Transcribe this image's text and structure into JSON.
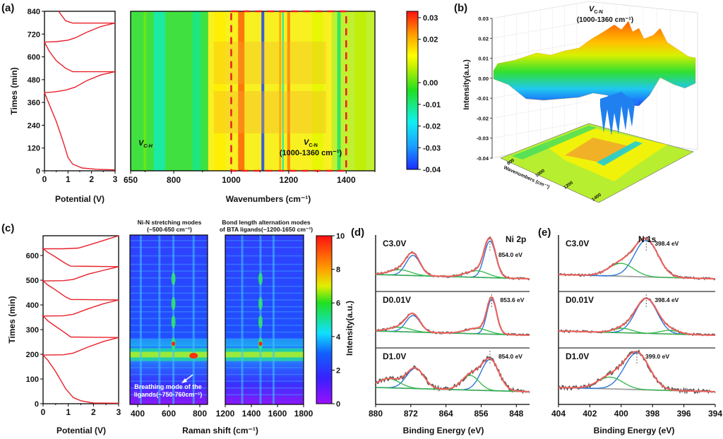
{
  "chart_data": [
    {
      "panel": "(a)",
      "type": "line",
      "subplot": "a-left",
      "xlabel": "Potential (V)",
      "ylabel": "Times (min)",
      "xlim": [
        0,
        3
      ],
      "ylim": [
        0,
        840
      ],
      "xticks": [
        "0",
        "1",
        "2",
        "3"
      ],
      "yticks": [
        "0",
        "120",
        "240",
        "360",
        "480",
        "600",
        "720",
        "840"
      ],
      "series": [
        {
          "name": "charge-discharge",
          "color": "#e8202a",
          "x": [
            3.0,
            2.2,
            1.6,
            1.2,
            1.0,
            0.8,
            0.5,
            0.2,
            0.0,
            0.0,
            0.4,
            0.9,
            1.3,
            1.8,
            2.4,
            3.0,
            3.0,
            1.2,
            0.9,
            0.5,
            0.2,
            0.0,
            0.0,
            0.5,
            1.0,
            1.3,
            1.8,
            2.4,
            3.0,
            3.0,
            1.2,
            0.9,
            0.6
          ],
          "y": [
            5,
            8,
            15,
            35,
            70,
            150,
            260,
            350,
            412,
            412,
            415,
            425,
            440,
            475,
            505,
            522,
            522,
            522,
            540,
            580,
            630,
            678,
            678,
            680,
            688,
            700,
            730,
            760,
            778,
            778,
            778,
            790,
            840
          ]
        }
      ]
    },
    {
      "panel": "(a)",
      "type": "heatmap",
      "subplot": "a-right",
      "xlabel": "Wavenumbers (cm⁻¹)",
      "xlim": [
        650,
        1500
      ],
      "ylim": [
        0,
        840
      ],
      "xticks": [
        "650",
        "800",
        "1000",
        "1200",
        "1400"
      ],
      "colorbar": {
        "ticks": [
          "0.03",
          "0.02",
          "0.00",
          "-0.01",
          "-0.02",
          "-0.03",
          "-0.04"
        ],
        "range": [
          -0.04,
          0.03
        ]
      },
      "annotations": [
        "ν C-H",
        "ν C-N",
        "(1000-1360 cm⁻¹)"
      ],
      "highlight_box": {
        "x": [
          1000,
          1400
        ]
      },
      "bands": [
        {
          "wavenumber": 700,
          "value": 0.0
        },
        {
          "wavenumber": 750,
          "value": -0.015
        },
        {
          "wavenumber": 880,
          "value": -0.012
        },
        {
          "wavenumber": 960,
          "value": 0.012
        },
        {
          "wavenumber": 1035,
          "value": 0.024
        },
        {
          "wavenumber": 1110,
          "value": -0.038
        },
        {
          "wavenumber": 1170,
          "value": 0.02
        },
        {
          "wavenumber": 1180,
          "value": -0.015
        },
        {
          "wavenumber": 1200,
          "value": 0.022
        },
        {
          "wavenumber": 1300,
          "value": 0.008
        },
        {
          "wavenumber": 1375,
          "value": -0.01
        },
        {
          "wavenumber": 1450,
          "value": 0.005
        }
      ]
    },
    {
      "panel": "(b)",
      "type": "area",
      "subplot": "b-3d-surface",
      "ylabel": "Intensity(a.u.)",
      "zlim": [
        -0.04,
        0.03
      ],
      "zticks": [
        "0.03",
        "0.02",
        "0.01",
        "0.00",
        "-0.01",
        "-0.02",
        "-0.03",
        "-0.04"
      ],
      "xaxis_ticks": [
        "800",
        "1000",
        "1200",
        "1400"
      ],
      "xlabel": "Wavenumbers (cm⁻¹)",
      "annotations": [
        "ν C-N",
        "(1000-1360 cm⁻¹)"
      ]
    },
    {
      "panel": "(c)",
      "type": "line",
      "subplot": "c-left",
      "xlabel": "Potential (V)",
      "ylabel": "Times (min)",
      "xlim": [
        0,
        3
      ],
      "ylim": [
        0,
        680
      ],
      "xticks": [
        "0",
        "1",
        "2",
        "3"
      ],
      "yticks": [
        "0",
        "100",
        "200",
        "300",
        "400",
        "500",
        "600"
      ],
      "series": [
        {
          "name": "charge-discharge",
          "color": "#e8202a",
          "x": [
            3.0,
            2.0,
            1.5,
            1.2,
            0.9,
            0.5,
            0.2,
            0.0,
            0.0,
            0.8,
            1.2,
            1.8,
            2.4,
            3.0,
            3.0,
            1.1,
            0.9,
            0.4,
            0.2,
            0.0,
            0.0,
            0.8,
            1.2,
            1.8,
            2.4,
            3.0,
            3.0,
            1.1,
            0.9,
            0.4,
            0.2,
            0.0,
            0.0,
            0.8,
            1.2,
            1.8,
            2.4,
            3.0,
            3.0,
            1.1,
            0.9,
            0.4,
            0.2,
            0.0,
            0.0,
            0.8,
            1.4,
            2.0,
            2.5,
            3.0
          ],
          "y": [
            2,
            3,
            12,
            25,
            60,
            130,
            175,
            197,
            197,
            198,
            205,
            230,
            252,
            268,
            268,
            270,
            285,
            320,
            335,
            355,
            355,
            356,
            362,
            385,
            405,
            420,
            420,
            422,
            432,
            467,
            480,
            497,
            497,
            498,
            503,
            525,
            540,
            555,
            555,
            557,
            567,
            600,
            612,
            627,
            627,
            627,
            630,
            648,
            664,
            680
          ]
        }
      ]
    },
    {
      "panel": "(c)",
      "type": "heatmap",
      "subplot": "c-middle",
      "title": "Ni-N stretching modes (~500-650 cm⁻¹)",
      "xlim": [
        350,
        850
      ],
      "xticks": [
        "400",
        "600",
        "800"
      ],
      "annotation": "Breathing mode of the ligands(~750-760cm⁻¹)",
      "peak_lines": [
        420,
        540,
        630,
        760
      ]
    },
    {
      "panel": "(c)",
      "type": "heatmap",
      "subplot": "c-right",
      "title": "Bond length alternation modes of BTA ligands(~1200-1650 cm⁻¹)",
      "xlim": [
        1200,
        1800
      ],
      "xticks": [
        "1200",
        "1400",
        "1600",
        "1800"
      ],
      "xlabel": "Raman shift (cm⁻¹)",
      "peak_lines": [
        1330,
        1470,
        1570
      ],
      "colorbar": {
        "ticks": [
          "10",
          "8",
          "6",
          "4",
          "2",
          "0"
        ],
        "range": [
          0,
          10
        ],
        "label": "Intensity(a.u.)"
      }
    },
    {
      "panel": "(d)",
      "type": "line",
      "subplot": "d-xps-ni2p",
      "title": "Ni 2p",
      "xlabel": "Binding Energy (eV)",
      "ylabel": "Intensity(a.u.)",
      "xlim": [
        880,
        845
      ],
      "xticks": [
        "880",
        "872",
        "864",
        "856",
        "848"
      ],
      "spectra": [
        {
          "label": "C3.0V",
          "peak_label": "854.0 eV",
          "peaks": [
            {
              "center": 871.5,
              "height": 0.55,
              "width": 1.6
            },
            {
              "center": 854.0,
              "height": 1.0,
              "width": 1.3
            },
            {
              "center": 874.5,
              "height": 0.15,
              "width": 2.5
            },
            {
              "center": 857.0,
              "height": 0.18,
              "width": 2.5
            }
          ]
        },
        {
          "label": "D0.01V",
          "peak_label": "853.6 eV",
          "peaks": [
            {
              "center": 871.5,
              "height": 0.45,
              "width": 1.6
            },
            {
              "center": 853.6,
              "height": 0.95,
              "width": 1.1
            },
            {
              "center": 874.5,
              "height": 0.12,
              "width": 2.5
            },
            {
              "center": 857.0,
              "height": 0.15,
              "width": 2.5
            }
          ]
        },
        {
          "label": "D1.0V",
          "peak_label": "854.0 eV",
          "peaks": [
            {
              "center": 871.0,
              "height": 0.55,
              "width": 2.0
            },
            {
              "center": 854.0,
              "height": 0.85,
              "width": 2.0
            },
            {
              "center": 877.0,
              "height": 0.25,
              "width": 2.5
            },
            {
              "center": 858.5,
              "height": 0.4,
              "width": 2.0
            }
          ]
        }
      ],
      "colors": {
        "raw": "#555555",
        "fit": "#f0605a",
        "component1": "#1f6fd6",
        "component2": "#2fb84a",
        "background": "#a0a0a0"
      }
    },
    {
      "panel": "(e)",
      "type": "line",
      "subplot": "e-xps-n1s",
      "title": "N 1s",
      "xlabel": "Binding Energy (eV)",
      "xlim": [
        404,
        394
      ],
      "xticks": [
        "404",
        "402",
        "400",
        "398",
        "396",
        "394"
      ],
      "spectra": [
        {
          "label": "C3.0V",
          "peak_label": "398.4 eV",
          "peaks": [
            {
              "center": 398.4,
              "height": 1.0,
              "width": 0.75
            },
            {
              "center": 400.0,
              "height": 0.35,
              "width": 0.8
            }
          ]
        },
        {
          "label": "D0.01V",
          "peak_label": "398.4 eV",
          "peaks": [
            {
              "center": 398.4,
              "height": 0.95,
              "width": 0.7
            },
            {
              "center": 399.9,
              "height": 0.12,
              "width": 0.6
            },
            {
              "center": 396.9,
              "height": 0.1,
              "width": 0.6
            }
          ]
        },
        {
          "label": "D1.0V",
          "peak_label": "399.0 eV",
          "peaks": [
            {
              "center": 399.0,
              "height": 1.0,
              "width": 0.8
            },
            {
              "center": 400.7,
              "height": 0.32,
              "width": 0.8
            }
          ]
        }
      ],
      "colors": {
        "raw": "#555555",
        "fit": "#f0605a",
        "component1": "#1f6fd6",
        "component2": "#2fb84a",
        "background": "#a0a0a0"
      }
    }
  ],
  "labels": {
    "a": "(a)",
    "b": "(b)",
    "c": "(c)",
    "d": "(d)",
    "e": "(e)",
    "times_min": "Times (min)",
    "potential": "Potential (V)",
    "wavenumbers": "Wavenumbers (cm⁻¹)",
    "intensity": "Intensity(a.u.)",
    "raman_shift": "Raman shift (cm⁻¹)",
    "binding_energy": "Binding Energy (eV)",
    "vch": "V",
    "vch_sub": "C-H",
    "vcn": "V",
    "vcn_sub": "C-N",
    "vcn_range": "(1000-1360 cm⁻¹)",
    "nin_title1": "Ni-N stretching modes",
    "nin_title2": "(~500-650 cm⁻¹)",
    "bla_title1": "Bond length alternation modes",
    "bla_title2": "of BTA ligands(~1200-1650 cm⁻¹)",
    "breathing1": "Breathing mode of the",
    "breathing2": "ligands(~750-760cm⁻¹)",
    "ni2p": "Ni 2p",
    "n1s": "N 1s",
    "b_wavenumbers": "Wavenumbers (cm⁻¹)"
  }
}
